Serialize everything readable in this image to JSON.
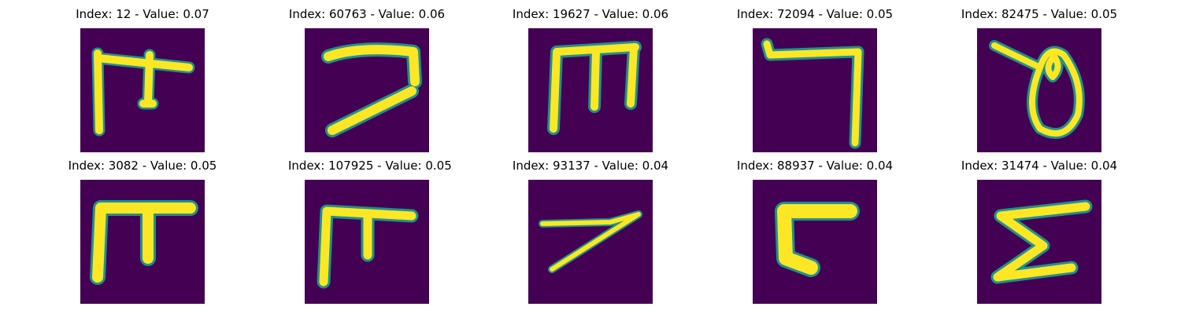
{
  "colors": {
    "background": "#440154",
    "stroke_core": "#fde725",
    "stroke_edge": "#21918c",
    "stroke_mid": "#5ec962"
  },
  "grid": [
    {
      "title": "Index: 12 - Value: 0.07",
      "glyph": "ideogram-12"
    },
    {
      "title": "Index: 60763 - Value: 0.06",
      "glyph": "ideogram-60763"
    },
    {
      "title": "Index: 19627 - Value: 0.06",
      "glyph": "ideogram-19627"
    },
    {
      "title": "Index: 72094 - Value: 0.05",
      "glyph": "ideogram-72094"
    },
    {
      "title": "Index: 82475 - Value: 0.05",
      "glyph": "ideogram-82475"
    },
    {
      "title": "Index: 3082 - Value: 0.05",
      "glyph": "ideogram-3082"
    },
    {
      "title": "Index: 107925 - Value: 0.05",
      "glyph": "ideogram-107925"
    },
    {
      "title": "Index: 93137 - Value: 0.04",
      "glyph": "ideogram-93137"
    },
    {
      "title": "Index: 88937 - Value: 0.04",
      "glyph": "ideogram-88937"
    },
    {
      "title": "Index: 31474 - Value: 0.04",
      "glyph": "ideogram-31474"
    }
  ]
}
